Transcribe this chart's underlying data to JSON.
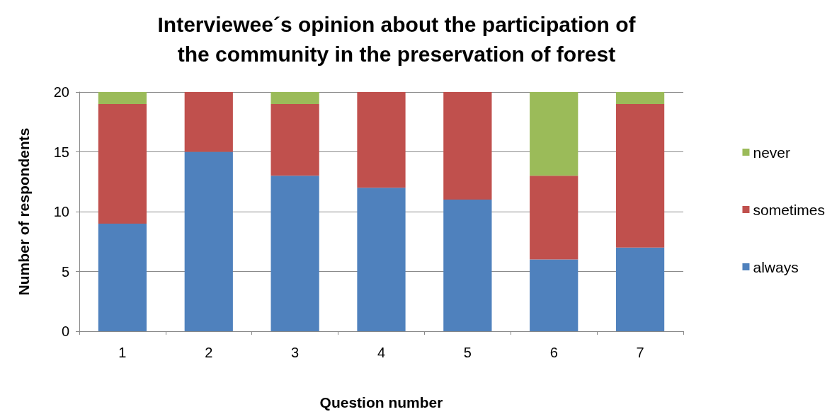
{
  "chart_data": {
    "type": "bar",
    "title": "Interviewee´s opinion about the participation of\nthe community in the preservation of forest",
    "xlabel": "Question number",
    "ylabel": "Number of respondents",
    "categories": [
      "1",
      "2",
      "3",
      "4",
      "5",
      "6",
      "7"
    ],
    "stacked": true,
    "ylim": [
      0,
      20
    ],
    "yticks": [
      0,
      5,
      10,
      15,
      20
    ],
    "grid": "y",
    "legend": "right",
    "series": [
      {
        "name": "always",
        "color": "#4f81bd",
        "values": [
          9,
          15,
          13,
          12,
          11,
          6,
          7
        ]
      },
      {
        "name": "sometimes",
        "color": "#c0504d",
        "values": [
          10,
          5,
          6,
          8,
          9,
          7,
          12
        ]
      },
      {
        "name": "never",
        "color": "#9bbb59",
        "values": [
          1,
          0,
          1,
          0,
          0,
          7,
          1
        ]
      }
    ]
  }
}
